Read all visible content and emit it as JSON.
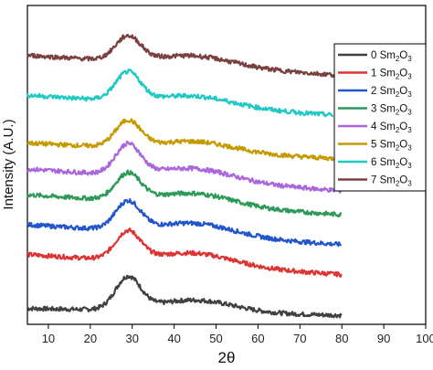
{
  "chart_data": {
    "type": "line",
    "xlabel": "2θ",
    "ylabel": "Intensity (A.U.)",
    "xlim": [
      5,
      100
    ],
    "x_ticks": [
      10,
      20,
      30,
      40,
      50,
      60,
      70,
      80,
      90,
      100
    ],
    "x_tick_labels": [
      "10",
      "20",
      "30",
      "40",
      "50",
      "60",
      "70",
      "80",
      "90",
      "100"
    ],
    "y_ticks_shown": false,
    "grid": false,
    "legend_position": "right",
    "series": [
      {
        "name": "0 Sm2O3",
        "legend": {
          "base": "0 Sm",
          "sub1": "2",
          "mid": "O",
          "sub2": "3"
        },
        "color": "#404040",
        "x_start": 5,
        "x_end": 80,
        "offset": 0.3,
        "peak": 1.6,
        "broad": 0.6,
        "tail": -0.35
      },
      {
        "name": "1 Sm2O3",
        "legend": {
          "base": "1 Sm",
          "sub1": "2",
          "mid": "O",
          "sub2": "3"
        },
        "color": "#dd3333",
        "x_start": 5,
        "x_end": 80,
        "offset": 3.0,
        "peak": 1.4,
        "broad": 0.6,
        "tail": -1.0
      },
      {
        "name": "2 Sm2O3",
        "legend": {
          "base": "2 Sm",
          "sub1": "2",
          "mid": "O",
          "sub2": "3"
        },
        "color": "#2255cc",
        "x_start": 5,
        "x_end": 80,
        "offset": 4.5,
        "peak": 1.4,
        "broad": 0.6,
        "tail": -1.0
      },
      {
        "name": "3 Sm2O3",
        "legend": {
          "base": "3 Sm",
          "sub1": "2",
          "mid": "O",
          "sub2": "3"
        },
        "color": "#2e9a5a",
        "x_start": 5,
        "x_end": 80,
        "offset": 6.0,
        "peak": 1.3,
        "broad": 0.6,
        "tail": -1.0
      },
      {
        "name": "4 Sm2O3",
        "legend": {
          "base": "4 Sm",
          "sub1": "2",
          "mid": "O",
          "sub2": "3"
        },
        "color": "#aa66dd",
        "x_start": 5,
        "x_end": 80,
        "offset": 7.3,
        "peak": 1.5,
        "broad": 0.6,
        "tail": -1.1
      },
      {
        "name": "5 Sm2O3",
        "legend": {
          "base": "5 Sm",
          "sub1": "2",
          "mid": "O",
          "sub2": "3"
        },
        "color": "#c49a00",
        "x_start": 5,
        "x_end": 80,
        "offset": 8.6,
        "peak": 1.3,
        "broad": 0.5,
        "tail": -0.8
      },
      {
        "name": "6 Sm2O3",
        "legend": {
          "base": "6 Sm",
          "sub1": "2",
          "mid": "O",
          "sub2": "3"
        },
        "color": "#1ec9c3",
        "x_start": 5,
        "x_end": 78,
        "offset": 11.0,
        "peak": 1.4,
        "broad": 0.5,
        "tail": -1.0
      },
      {
        "name": "7 Sm2O3",
        "legend": {
          "base": "7 Sm",
          "sub1": "2",
          "mid": "O",
          "sub2": "3"
        },
        "color": "#7a4040",
        "x_start": 5,
        "x_end": 80,
        "offset": 13.0,
        "peak": 1.2,
        "broad": 0.5,
        "tail": -1.0
      }
    ]
  }
}
